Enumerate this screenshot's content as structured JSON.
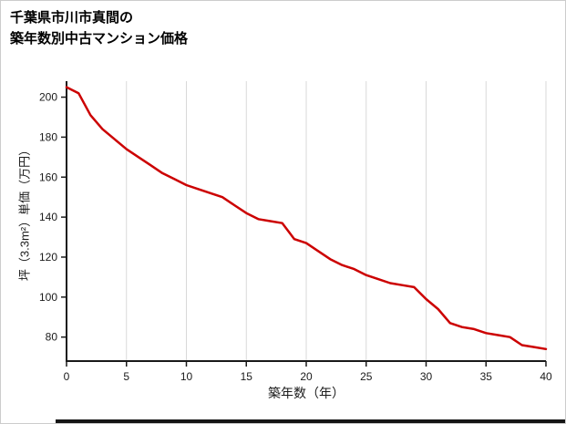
{
  "header": {
    "title_line1": "千葉県市川市真間の",
    "title_line2": "築年数別中古マンション価格"
  },
  "chart_data": {
    "type": "line",
    "title": "千葉県市川市真間の築年数別中古マンション価格",
    "xlabel": "築年数（年）",
    "ylabel": "坪（3.3m²）単価（万円）",
    "x": [
      0,
      1,
      2,
      3,
      4,
      5,
      6,
      7,
      8,
      9,
      10,
      11,
      12,
      13,
      14,
      15,
      16,
      17,
      18,
      19,
      20,
      21,
      22,
      23,
      24,
      25,
      26,
      27,
      28,
      29,
      30,
      31,
      32,
      33,
      34,
      35,
      36,
      37,
      38,
      39,
      40
    ],
    "y": [
      205,
      202,
      191,
      184,
      179,
      174,
      170,
      166,
      162,
      159,
      156,
      154,
      152,
      150,
      146,
      142,
      139,
      138,
      137,
      129,
      127,
      123,
      119,
      116,
      114,
      111,
      109,
      107,
      106,
      105,
      99,
      94,
      87,
      85,
      84,
      82,
      81,
      80,
      76,
      75,
      74
    ],
    "xlim": [
      0,
      40
    ],
    "ylim": [
      68,
      208
    ],
    "xticks": [
      0,
      5,
      10,
      15,
      20,
      25,
      30,
      35,
      40
    ],
    "yticks": [
      80,
      100,
      120,
      140,
      160,
      180,
      200
    ],
    "grid": "vertical",
    "legend": "none",
    "colors": {
      "line": "#cc0000",
      "grid": "#d9d9d9",
      "axis": "#1a1a1a",
      "tick_text": "#1a1a1a"
    }
  }
}
